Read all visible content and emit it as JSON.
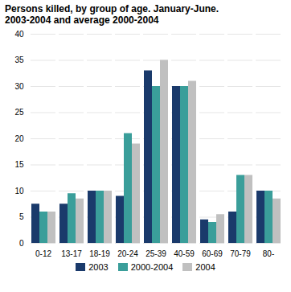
{
  "chart_data": {
    "type": "bar",
    "title": "Persons killed, by group of age. January-June.\n2003-2004 and average 2000-2004",
    "categories": [
      "0-12",
      "13-17",
      "18-19",
      "20-24",
      "25-39",
      "40-59",
      "60-69",
      "70-79",
      "80-"
    ],
    "series": [
      {
        "name": "2003",
        "color": "#1a3a6b",
        "values": [
          7.5,
          7.5,
          10,
          9,
          33,
          30,
          4.5,
          6,
          10
        ]
      },
      {
        "name": "2000-2004",
        "color": "#3a9e9a",
        "values": [
          6,
          9.5,
          10,
          21,
          30,
          30,
          4,
          13,
          10
        ]
      },
      {
        "name": "2004",
        "color": "#c0c0c0",
        "values": [
          6,
          8.5,
          10,
          19,
          35,
          31,
          5.5,
          13,
          8.5
        ]
      }
    ],
    "ylim": [
      0,
      40
    ],
    "yticks": [
      0,
      5,
      10,
      15,
      20,
      25,
      30,
      35,
      40
    ],
    "grid": true,
    "legend": "bottom"
  }
}
